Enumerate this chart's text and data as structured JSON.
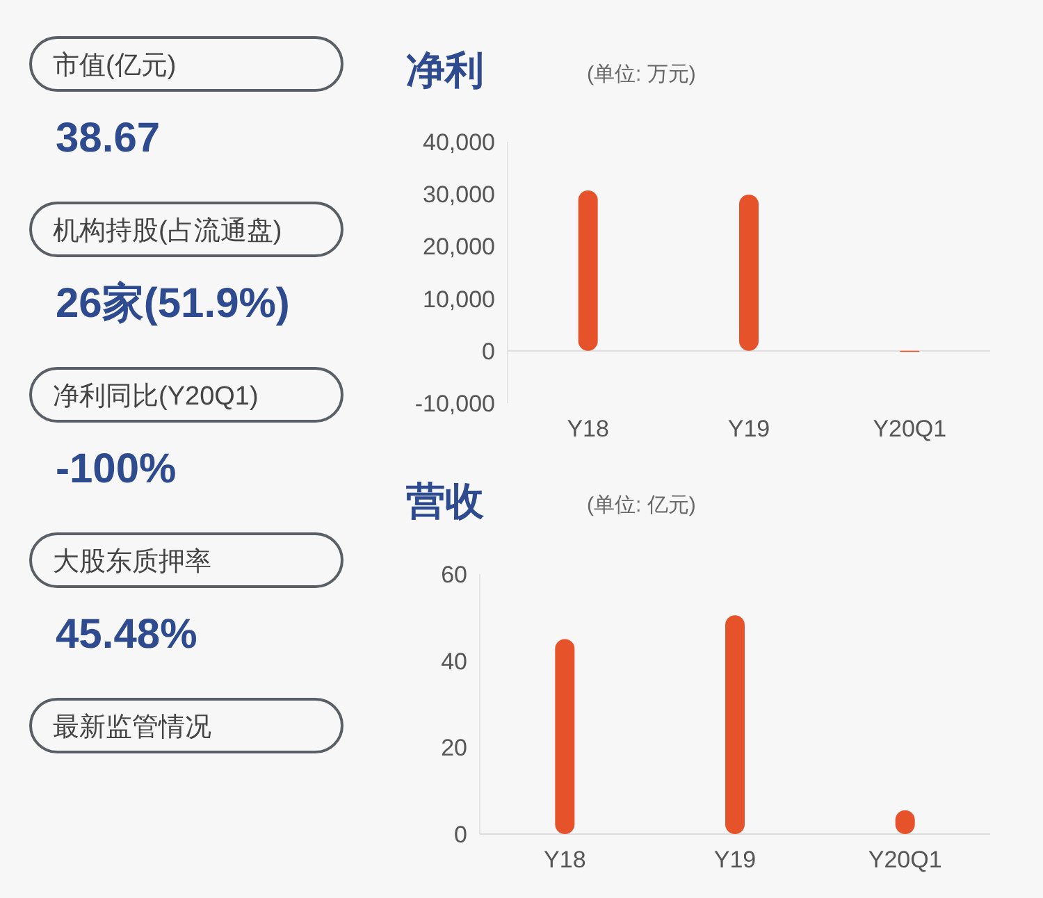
{
  "chart_data": [
    {
      "type": "other",
      "categories": [
        "市值(亿元)",
        "机构持股(占流通盘)",
        "净利同比(Y20Q1)",
        "大股东质押率",
        "最新监管情况"
      ],
      "annotations": [
        "38.67",
        "26家(51.9%)",
        "-100%",
        "45.48%"
      ]
    },
    {
      "type": "bar",
      "title": "净利",
      "subtitle": "(单位: 万元)",
      "categories": [
        "Y18",
        "Y19",
        "Y20Q1"
      ],
      "values": [
        30700,
        29900,
        -200
      ],
      "color": "#e6532b",
      "ylim": [
        -10000,
        40000
      ],
      "yticks": [
        {
          "value": -10000,
          "label": "-10,000"
        },
        0,
        {
          "value": 10000,
          "label": "10,000"
        },
        {
          "value": 20000,
          "label": "20,000"
        },
        {
          "value": 30000,
          "label": "30,000"
        },
        {
          "value": 40000,
          "label": "40,000"
        }
      ]
    },
    {
      "type": "bar",
      "title": "营收",
      "subtitle": "(单位: 亿元)",
      "categories": [
        "Y18",
        "Y19",
        "Y20Q1"
      ],
      "values": [
        45,
        50.5,
        5.5
      ],
      "color": "#e6532b",
      "ylim": [
        0,
        60
      ],
      "yticks": [
        0,
        20,
        40,
        60
      ]
    }
  ]
}
